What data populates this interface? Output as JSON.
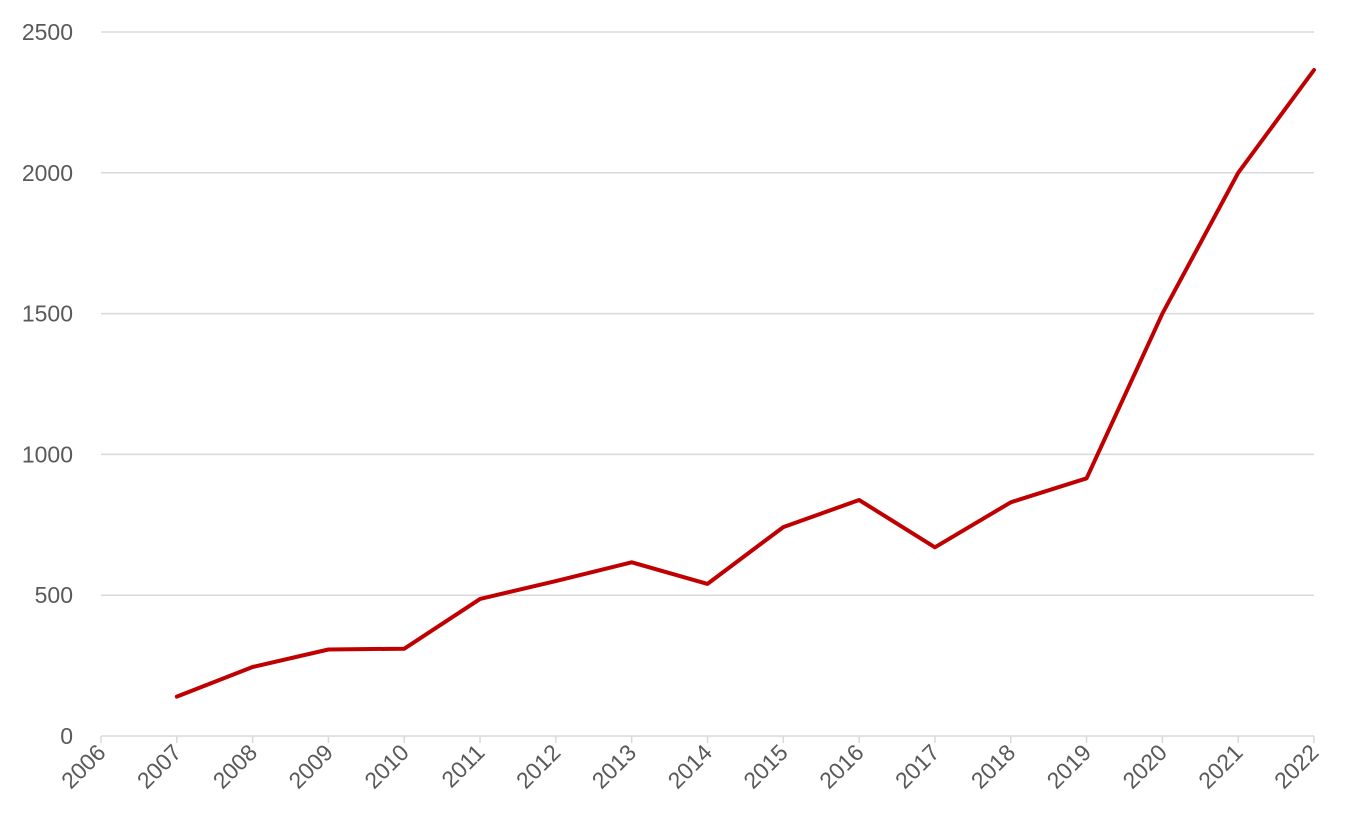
{
  "chart_data": {
    "type": "line",
    "title": "",
    "xlabel": "",
    "ylabel": "",
    "categories": [
      "2006",
      "2007",
      "2008",
      "2009",
      "2010",
      "2011",
      "2012",
      "2013",
      "2014",
      "2015",
      "2016",
      "2017",
      "2018",
      "2019",
      "2020",
      "2021",
      "2022"
    ],
    "series": [
      {
        "color": "#c00000",
        "values": [
          null,
          140,
          245,
          307,
          310,
          487,
          550,
          617,
          540,
          742,
          838,
          670,
          830,
          915,
          1500,
          2000,
          2365
        ]
      }
    ],
    "ylim": [
      0,
      2500
    ],
    "yticks": [
      0,
      500,
      1000,
      1500,
      2000,
      2500
    ],
    "grid": true,
    "legend": "none"
  }
}
